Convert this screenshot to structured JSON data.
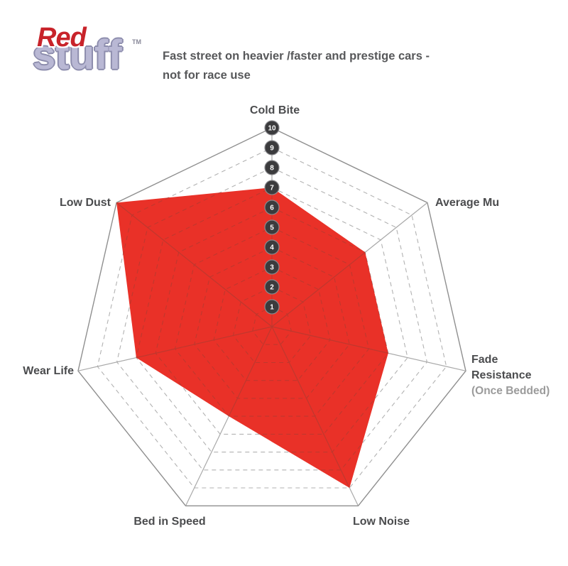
{
  "logo": {
    "red": "Red",
    "stuff": "stuff",
    "tm": "TM"
  },
  "header": {
    "line1": "Fast street on heavier /faster and prestige cars -",
    "line2": "not for race use"
  },
  "chart_data": {
    "type": "radar",
    "axes": [
      "Cold Bite",
      "Average Mu",
      "Fade Resistance",
      "Low Noise",
      "Bed in Speed",
      "Wear Life",
      "Low Dust"
    ],
    "axis_sublabels": {
      "Fade Resistance": "(Once Bedded)"
    },
    "values": [
      7,
      6,
      6,
      9,
      5,
      7,
      10
    ],
    "scale_ticks": [
      1,
      2,
      3,
      4,
      5,
      6,
      7,
      8,
      9,
      10
    ],
    "axis_range": [
      0,
      10
    ],
    "grid": "dashed rings, solid outer ring and spokes",
    "legend": "none",
    "colors": {
      "fill_red": "#e93128",
      "grid_gray": "#b2b2b2",
      "grid_outer": "#8f8f8f",
      "spoke_gray": "#a9a9a9",
      "grid_over_red": "#bf382e",
      "badge_bg": "#3b3b3d",
      "badge_edge": "#8a8a8e",
      "badge_text": "#ffffff",
      "label_text": "#4b4c4e",
      "sublabel_text": "#9b9b9b"
    }
  }
}
